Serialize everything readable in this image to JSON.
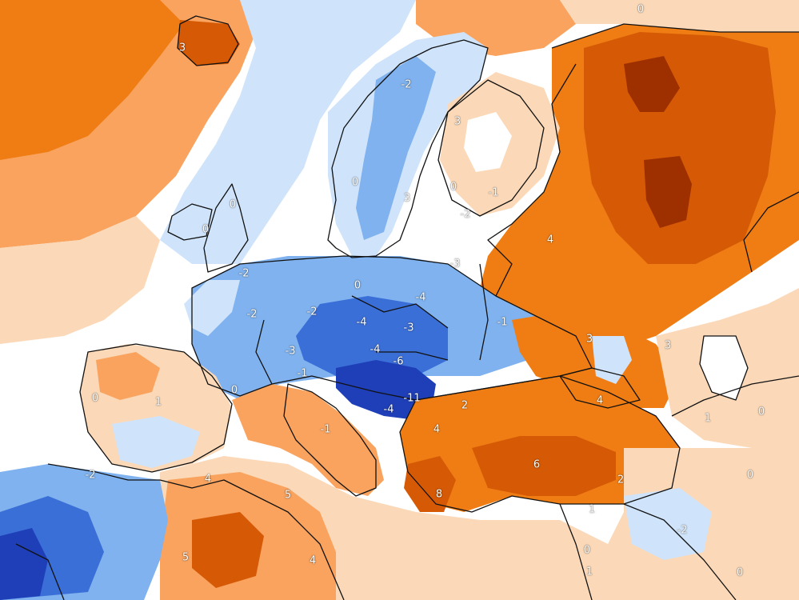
{
  "map": {
    "type": "anomaly-map",
    "region": "Europe",
    "palette": {
      "very_cold": "#1f3fb8",
      "cold": "#3b6fd8",
      "cool": "#7fb2ee",
      "slightly_cool": "#cfe4fb",
      "neutral": "#ffffff",
      "slightly_warm": "#fbd9b8",
      "warm": "#f9a35e",
      "hot": "#f07d14",
      "very_hot": "#d65a05",
      "extreme": "#9e3000"
    },
    "borders_color": "#111111",
    "labels": [
      "3",
      "0",
      "-2",
      "3",
      "0",
      "-1",
      "0",
      "3",
      "-2",
      "0",
      "0",
      "-3",
      "-2",
      "-2",
      "0",
      "-2",
      "-4",
      "-4",
      "-3",
      "-1",
      "-3",
      "-4",
      "-6",
      "-1",
      "4",
      "3",
      "0",
      "1",
      "0",
      "-11",
      "-1",
      "2",
      "4",
      "4",
      "-4",
      "1",
      "0",
      "-2",
      "4",
      "5",
      "8",
      "6",
      "2",
      "3",
      "1",
      "0",
      "0",
      "-2",
      "5",
      "4",
      "1",
      "0"
    ]
  }
}
